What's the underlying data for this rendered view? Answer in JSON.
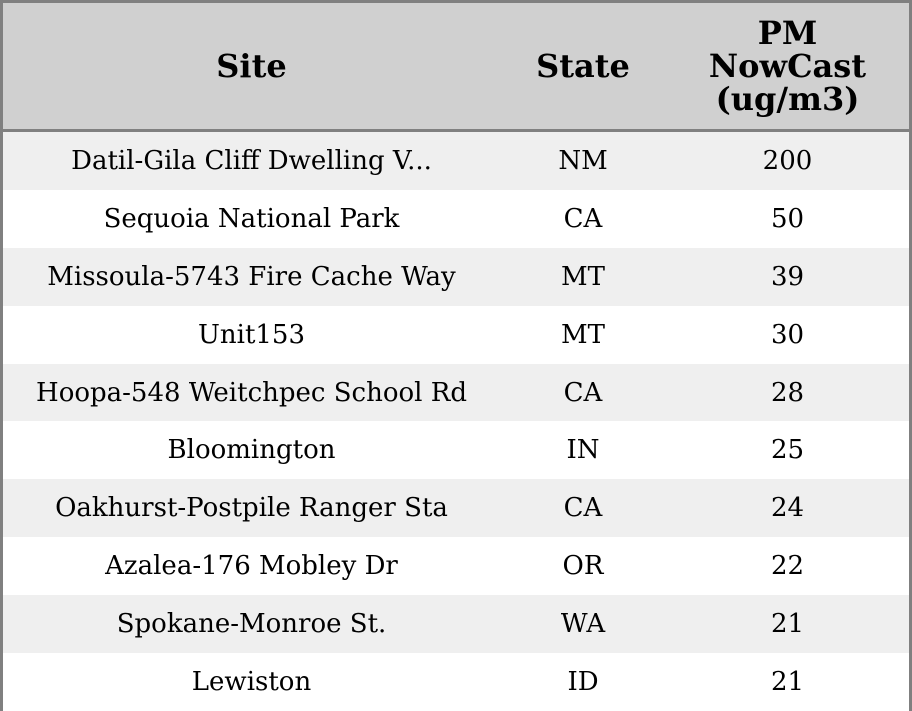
{
  "chart_data": {
    "type": "table",
    "columns": [
      "Site",
      "State",
      "PM NowCast (ug/m3)"
    ],
    "rows": [
      [
        "Datil-Gila Cliff Dwelling V...",
        "NM",
        "200"
      ],
      [
        "Sequoia National Park",
        "CA",
        "50"
      ],
      [
        "Missoula-5743 Fire Cache Way",
        "MT",
        "39"
      ],
      [
        "Unit153",
        "MT",
        "30"
      ],
      [
        "Hoopa-548 Weitchpec School Rd",
        "CA",
        "28"
      ],
      [
        "Bloomington",
        "IN",
        "25"
      ],
      [
        "Oakhurst-Postpile Ranger Sta",
        "CA",
        "24"
      ],
      [
        "Azalea-176 Mobley Dr",
        "OR",
        "22"
      ],
      [
        "Spokane-Monroe St.",
        "WA",
        "21"
      ],
      [
        "Lewiston",
        "ID",
        "21"
      ]
    ],
    "colors": {
      "header_bg": "#d0d0d0",
      "stripe": "#efefef",
      "border": "#808080"
    }
  }
}
